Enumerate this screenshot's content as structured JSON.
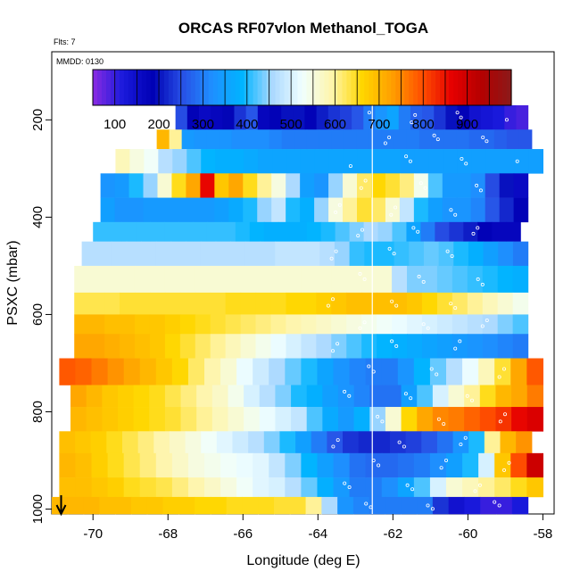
{
  "chart_data": {
    "type": "heatmap",
    "title": "ORCAS RF07vlon Methanol_TOGA",
    "flts_note": "Flts: 7",
    "mmdd_note": "MMDD: 0130",
    "xlabel": "Longitude (deg E)",
    "ylabel": "PSXC (mbar)",
    "xlim": [
      -71.1,
      -57.7
    ],
    "ylim_top_to_bottom": [
      60,
      1010
    ],
    "x_ticks": [
      -70,
      -68,
      -66,
      -64,
      -62,
      -60,
      -58
    ],
    "x_tick_labels": [
      "-70",
      "-68",
      "-66",
      "-64",
      "-62",
      "-60",
      "-58"
    ],
    "y_ticks": [
      200,
      400,
      600,
      800,
      1000
    ],
    "y_tick_labels": [
      "200",
      "400",
      "600",
      "800",
      "1000"
    ],
    "colorbar": {
      "range": [
        50,
        1000
      ],
      "ticks": [
        100,
        200,
        300,
        400,
        500,
        600,
        700,
        800,
        900
      ],
      "tick_labels": [
        "100",
        "200",
        "300",
        "400",
        "500",
        "600",
        "700",
        "800",
        "900"
      ],
      "colors": [
        "#8a2be2",
        "#1a1adc",
        "#0000b4",
        "#2850e6",
        "#1e90ff",
        "#00b4ff",
        "#aad8ff",
        "#f0ffff",
        "#fff5aa",
        "#ffd700",
        "#ffa000",
        "#ff5000",
        "#e60000",
        "#b40000",
        "#8b1a1a"
      ]
    },
    "divider_longitude": -62.55,
    "arrow_marker_longitude": -70.85,
    "series": [
      {
        "p_range": [
          170,
          220
        ],
        "lon_range": [
          -67.8,
          -58.4
        ],
        "values": [
          250,
          180,
          160,
          170,
          190,
          230,
          260,
          170,
          180,
          200,
          200,
          180,
          210,
          230,
          240,
          260,
          300,
          330,
          360,
          300,
          270,
          260,
          230,
          200,
          180,
          140,
          130,
          120,
          100,
          90
        ]
      },
      {
        "p_range": [
          220,
          260
        ],
        "lon_range": [
          -68.3,
          -58.3
        ],
        "values": [
          700,
          600,
          340,
          330,
          330,
          330,
          320,
          320,
          320,
          310,
          300,
          300,
          300,
          300,
          300,
          300,
          300,
          300,
          300,
          300,
          300,
          290,
          290,
          290,
          290,
          280,
          280,
          270,
          260,
          260
        ]
      },
      {
        "p_range": [
          260,
          310
        ],
        "lon_range": [
          -69.4,
          -58.0
        ],
        "values": [
          580,
          550,
          530,
          470,
          450,
          420,
          390,
          380,
          380,
          370,
          360,
          360,
          360,
          360,
          360,
          360,
          360,
          360,
          360,
          360,
          350,
          350,
          350,
          350,
          350,
          350,
          350,
          350,
          350,
          350
        ]
      },
      {
        "p_range": [
          310,
          360
        ],
        "lon_range": [
          -69.8,
          -58.4
        ],
        "values": [
          330,
          340,
          400,
          450,
          560,
          650,
          720,
          860,
          680,
          720,
          650,
          600,
          550,
          460,
          350,
          330,
          450,
          560,
          620,
          660,
          640,
          610,
          540,
          420,
          340,
          340,
          320,
          250,
          200,
          160
        ]
      },
      {
        "p_range": [
          360,
          410
        ],
        "lon_range": [
          -69.8,
          -58.4
        ],
        "values": [
          350,
          330,
          330,
          340,
          340,
          340,
          340,
          340,
          350,
          370,
          400,
          450,
          480,
          400,
          380,
          450,
          550,
          600,
          640,
          620,
          560,
          480,
          400,
          350,
          330,
          330,
          310,
          260,
          220,
          180
        ]
      },
      {
        "p_range": [
          410,
          450
        ],
        "lon_range": [
          -70.0,
          -58.6
        ],
        "values": [
          410,
          410,
          410,
          410,
          410,
          410,
          410,
          410,
          410,
          410,
          400,
          390,
          380,
          380,
          380,
          390,
          400,
          420,
          440,
          460,
          450,
          420,
          360,
          300,
          250,
          230,
          210,
          180,
          170,
          170
        ]
      },
      {
        "p_range": [
          450,
          500
        ],
        "lon_range": [
          -70.3,
          -58.4
        ],
        "values": [
          470,
          470,
          470,
          470,
          470,
          470,
          470,
          470,
          470,
          470,
          470,
          470,
          470,
          480,
          480,
          480,
          470,
          450,
          410,
          400,
          400,
          410,
          420,
          430,
          420,
          400,
          380,
          350,
          320,
          300
        ]
      },
      {
        "p_range": [
          500,
          555
        ],
        "lon_range": [
          -70.5,
          -58.4
        ],
        "values": [
          560,
          560,
          560,
          560,
          560,
          560,
          560,
          560,
          560,
          560,
          560,
          560,
          560,
          560,
          560,
          560,
          560,
          560,
          560,
          560,
          560,
          470,
          440,
          440,
          430,
          420,
          410,
          400,
          390,
          380
        ]
      },
      {
        "p_range": [
          555,
          600
        ],
        "lon_range": [
          -70.5,
          -58.4
        ],
        "values": [
          630,
          630,
          630,
          640,
          640,
          640,
          640,
          640,
          640,
          640,
          650,
          650,
          650,
          650,
          660,
          660,
          670,
          680,
          690,
          690,
          690,
          690,
          680,
          660,
          640,
          620,
          600,
          580,
          560,
          540
        ]
      },
      {
        "p_range": [
          600,
          640
        ],
        "lon_range": [
          -70.5,
          -58.4
        ],
        "values": [
          700,
          700,
          690,
          690,
          680,
          680,
          670,
          660,
          650,
          640,
          630,
          620,
          610,
          600,
          590,
          580,
          570,
          560,
          550,
          540,
          530,
          520,
          510,
          500,
          490,
          480,
          470,
          460,
          440,
          420
        ]
      },
      {
        "p_range": [
          640,
          690
        ],
        "lon_range": [
          -70.5,
          -58.4
        ],
        "values": [
          720,
          720,
          710,
          700,
          690,
          680,
          660,
          640,
          620,
          600,
          580,
          560,
          540,
          520,
          500,
          480,
          460,
          440,
          420,
          400,
          390,
          380,
          370,
          360,
          350,
          340,
          330,
          320,
          310,
          300
        ]
      },
      {
        "p_range": [
          690,
          745
        ],
        "lon_range": [
          -70.9,
          -58.0
        ],
        "values": [
          790,
          780,
          760,
          740,
          720,
          700,
          680,
          660,
          620,
          590,
          560,
          520,
          490,
          460,
          430,
          400,
          360,
          330,
          310,
          300,
          300,
          330,
          390,
          430,
          470,
          520,
          580,
          640,
          720,
          790
        ]
      },
      {
        "p_range": [
          745,
          790
        ],
        "lon_range": [
          -70.6,
          -58.0
        ],
        "values": [
          720,
          700,
          680,
          670,
          660,
          650,
          630,
          610,
          590,
          570,
          540,
          500,
          470,
          440,
          400,
          380,
          350,
          330,
          310,
          290,
          290,
          350,
          420,
          500,
          560,
          600,
          650,
          700,
          720,
          760
        ]
      },
      {
        "p_range": [
          790,
          840
        ],
        "lon_range": [
          -70.6,
          -58.0
        ],
        "values": [
          700,
          690,
          680,
          670,
          660,
          650,
          640,
          620,
          600,
          580,
          560,
          540,
          520,
          500,
          480,
          420,
          370,
          340,
          380,
          450,
          560,
          660,
          720,
          750,
          760,
          780,
          800,
          820,
          860,
          880
        ]
      },
      {
        "p_range": [
          840,
          885
        ],
        "lon_range": [
          -70.9,
          -58.3
        ],
        "values": [
          690,
          680,
          670,
          650,
          630,
          610,
          590,
          570,
          550,
          530,
          510,
          490,
          470,
          440,
          400,
          350,
          300,
          260,
          230,
          220,
          220,
          230,
          240,
          260,
          290,
          330,
          400,
          600,
          700,
          740
        ]
      },
      {
        "p_range": [
          885,
          935
        ],
        "lon_range": [
          -70.9,
          -58.0
        ],
        "values": [
          700,
          690,
          670,
          650,
          630,
          610,
          590,
          570,
          550,
          540,
          530,
          520,
          510,
          480,
          440,
          390,
          350,
          320,
          290,
          280,
          280,
          290,
          300,
          320,
          350,
          400,
          500,
          680,
          800,
          900
        ]
      },
      {
        "p_range": [
          935,
          975
        ],
        "lon_range": [
          -70.9,
          -58.0
        ],
        "values": [
          690,
          690,
          680,
          670,
          650,
          640,
          630,
          610,
          590,
          570,
          550,
          530,
          510,
          500,
          470,
          430,
          380,
          340,
          300,
          300,
          320,
          360,
          420,
          500,
          560,
          580,
          600,
          620,
          650,
          680
        ]
      },
      {
        "p_range": [
          975,
          1010
        ],
        "lon_range": [
          -71.1,
          -58.4
        ],
        "values": [
          700,
          700,
          700,
          690,
          690,
          680,
          680,
          670,
          670,
          660,
          660,
          650,
          650,
          650,
          640,
          640,
          600,
          460,
          330,
          310,
          300,
          300,
          300,
          300,
          230,
          140,
          120,
          100,
          100,
          120
        ]
      }
    ]
  }
}
